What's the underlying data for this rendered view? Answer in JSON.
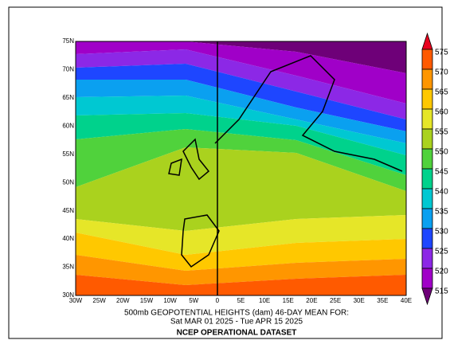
{
  "map": {
    "lat_labels": [
      "75N",
      "70N",
      "65N",
      "60N",
      "55N",
      "50N",
      "45N",
      "40N",
      "35N",
      "30N"
    ],
    "lon_labels": [
      "30W",
      "25W",
      "20W",
      "15W",
      "10W",
      "5W",
      "0",
      "5E",
      "10E",
      "15E",
      "20E",
      "25E",
      "30E",
      "35E",
      "40E"
    ],
    "colorbar": {
      "levels": [
        575,
        570,
        565,
        560,
        555,
        550,
        545,
        540,
        535,
        530,
        525,
        520,
        515
      ],
      "colors": [
        "#e8001e",
        "#ff5a00",
        "#ff9600",
        "#ffc800",
        "#e6e628",
        "#aad21e",
        "#50d23c",
        "#00d28c",
        "#00c8d2",
        "#0aa0f0",
        "#1e46ff",
        "#8c28e6",
        "#a000c8",
        "#6e0078"
      ]
    }
  },
  "caption": {
    "line1": "500mb GEOPOTENTIAL HEIGHTS (dam)   46-DAY MEAN FOR:",
    "line2": "Sat MAR 01 2025 - Tue APR 15 2025",
    "line3": "NCEP OPERATIONAL DATASET"
  }
}
